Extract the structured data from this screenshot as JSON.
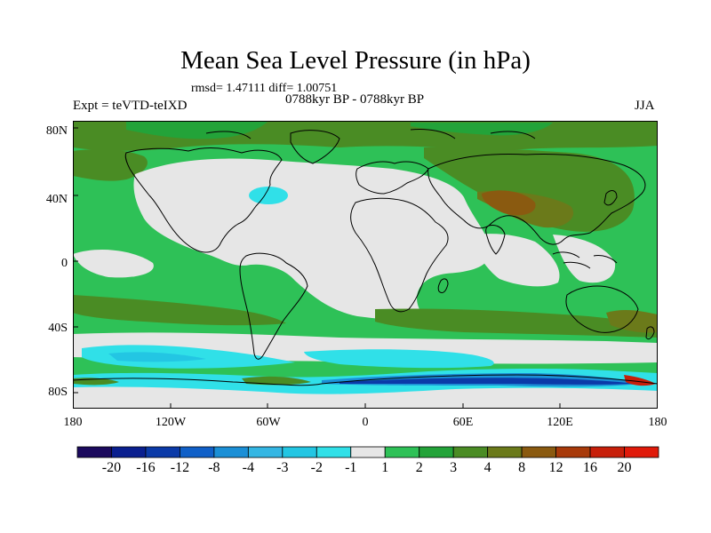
{
  "title": "Mean Sea Level Pressure (in hPa)",
  "stats_text": "rmsd= 1.47111 diff= 1.00751",
  "period_text": "0788kyr BP - 0788kyr BP",
  "expt_text": "Expt = teVTD-teIXD",
  "season": "JJA",
  "y_ticks": [
    {
      "label": "80N"
    },
    {
      "label": "40N"
    },
    {
      "label": "0"
    },
    {
      "label": "40S"
    },
    {
      "label": "80S"
    }
  ],
  "x_ticks": [
    {
      "label": "180"
    },
    {
      "label": "120W"
    },
    {
      "label": "60W"
    },
    {
      "label": "0"
    },
    {
      "label": "60E"
    },
    {
      "label": "120E"
    },
    {
      "label": "180"
    }
  ],
  "colorbar": {
    "levels": [
      "-20",
      "-16",
      "-12",
      "-8",
      "-4",
      "-3",
      "-2",
      "-1",
      "1",
      "2",
      "3",
      "4",
      "8",
      "12",
      "16",
      "20"
    ],
    "colors": [
      "#1c0a5e",
      "#0a1f8f",
      "#0b3aa8",
      "#1060c8",
      "#1b8fd6",
      "#34b6e3",
      "#23c6e3",
      "#30e0e8",
      "#e6e6e6",
      "#2ec157",
      "#23a339",
      "#4a8c24",
      "#6b7a1a",
      "#8a5a10",
      "#a83a0a",
      "#c71f0a",
      "#e01a0a"
    ]
  },
  "colors": {
    "land_outline": "#000000",
    "green_light": "#2ec157",
    "green_mid": "#23a339",
    "olive": "#4a8c24",
    "brown": "#8a5a10",
    "neutral": "#e6e6e6",
    "cyan": "#23c6e3",
    "cyan_light": "#30e0e8",
    "blue": "#1b8fd6",
    "dark_blue": "#0b3aa8",
    "red": "#c71f0a"
  }
}
